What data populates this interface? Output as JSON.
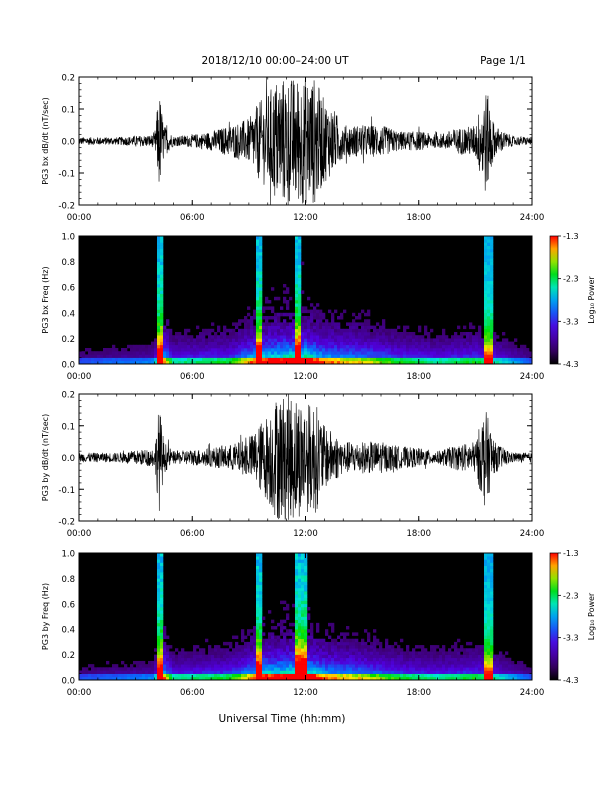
{
  "header": {
    "title": "2018/12/10   00:00–24:00 UT",
    "page": "Page 1/1"
  },
  "footer": {
    "xlabel": "Universal Time (hh:mm)"
  },
  "colors": {
    "waveform": "#000000",
    "spectrogram_background": "#000000"
  },
  "chart_data": [
    {
      "type": "line",
      "series_desc": "PG3 bx induction magnetometer time series",
      "ylabel": "PG3 bx dB/dt (nT/sec)",
      "ylim": [
        -0.2,
        0.2
      ],
      "yticks": [
        "0.2",
        "0.1",
        "0.0",
        "-0.1",
        "-0.2"
      ],
      "xlim": [
        0,
        24
      ],
      "xticks": [
        "00:00",
        "06:00",
        "12:00",
        "18:00",
        "24:00"
      ],
      "envelope": {
        "x_hours": [
          0,
          2,
          4.0,
          4.25,
          4.5,
          5,
          6,
          7,
          8,
          9,
          9.5,
          10,
          10.5,
          11,
          11.5,
          12,
          12.5,
          13,
          13.5,
          14,
          15,
          16,
          17,
          18,
          19,
          20,
          21,
          21.5,
          21.8,
          22,
          22.5,
          23,
          24
        ],
        "amplitude": [
          0.012,
          0.012,
          0.02,
          0.16,
          0.05,
          0.015,
          0.02,
          0.03,
          0.05,
          0.07,
          0.12,
          0.15,
          0.2,
          0.2,
          0.2,
          0.2,
          0.2,
          0.13,
          0.1,
          0.05,
          0.05,
          0.05,
          0.03,
          0.03,
          0.02,
          0.04,
          0.05,
          0.17,
          0.12,
          0.05,
          0.03,
          0.015,
          0.012
        ]
      }
    },
    {
      "type": "heatmap",
      "ylabel": "PG3 bx Freq (Hz)",
      "ylim": [
        0.0,
        1.0
      ],
      "yticks": [
        "1.0",
        "0.8",
        "0.6",
        "0.4",
        "0.2",
        "0.0"
      ],
      "xlim": [
        0,
        24
      ],
      "xticks": [
        "00:00",
        "06:00",
        "12:00",
        "18:00",
        "24:00"
      ],
      "colorbar": {
        "label": "Log₁₀ Power",
        "ticks": [
          "-1.3",
          "-2.3",
          "-3.3",
          "-4.3"
        ],
        "range": [
          -4.3,
          -1.3
        ]
      },
      "bright_columns_hours": [
        4.3,
        9.5,
        11.6,
        21.5,
        21.8
      ]
    },
    {
      "type": "line",
      "series_desc": "PG3 by induction magnetometer time series",
      "ylabel": "PG3 by dB/dt (nT/sec)",
      "ylim": [
        -0.2,
        0.2
      ],
      "yticks": [
        "0.2",
        "0.1",
        "0.0",
        "-0.1",
        "-0.2"
      ],
      "xlim": [
        0,
        24
      ],
      "xticks": [
        "00:00",
        "06:00",
        "12:00",
        "18:00",
        "24:00"
      ],
      "envelope": {
        "x_hours": [
          0,
          2,
          4.0,
          4.25,
          4.5,
          5,
          6,
          7,
          8,
          9,
          9.5,
          10,
          10.5,
          11,
          11.5,
          12,
          12.5,
          13,
          13.5,
          14,
          15,
          16,
          17,
          18,
          19,
          20,
          21,
          21.5,
          21.8,
          22,
          22.5,
          23,
          24
        ],
        "amplitude": [
          0.015,
          0.015,
          0.03,
          0.17,
          0.05,
          0.02,
          0.025,
          0.03,
          0.04,
          0.06,
          0.1,
          0.14,
          0.2,
          0.2,
          0.2,
          0.17,
          0.18,
          0.1,
          0.08,
          0.05,
          0.05,
          0.05,
          0.035,
          0.03,
          0.02,
          0.04,
          0.05,
          0.16,
          0.1,
          0.05,
          0.03,
          0.015,
          0.015
        ]
      }
    },
    {
      "type": "heatmap",
      "ylabel": "PG3 by Freq (Hz)",
      "ylim": [
        0.0,
        1.0
      ],
      "yticks": [
        "1.0",
        "0.8",
        "0.6",
        "0.4",
        "0.2",
        "0.0"
      ],
      "xlim": [
        0,
        24
      ],
      "xticks": [
        "00:00",
        "06:00",
        "12:00",
        "18:00",
        "24:00"
      ],
      "colorbar": {
        "label": "Log₁₀ Power",
        "ticks": [
          "-1.3",
          "-2.3",
          "-3.3",
          "-4.3"
        ],
        "range": [
          -4.3,
          -1.3
        ]
      },
      "bright_columns_hours": [
        4.3,
        9.5,
        11.6,
        11.9,
        21.5,
        21.8
      ]
    }
  ]
}
